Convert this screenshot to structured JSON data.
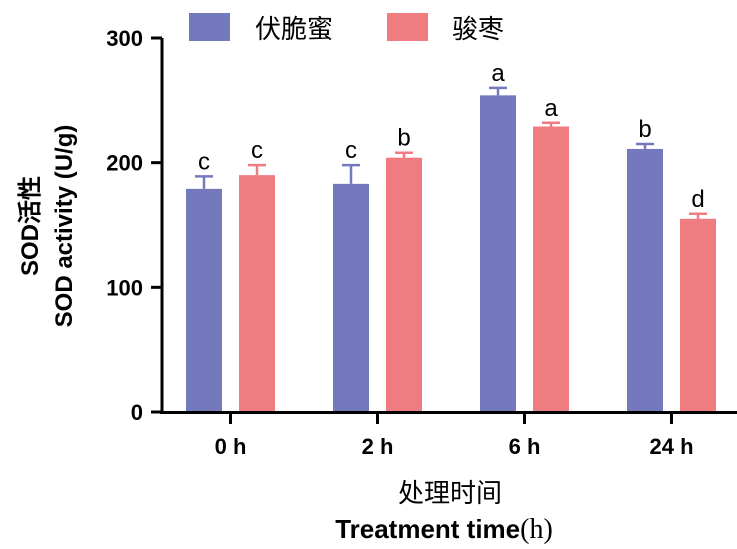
{
  "chart_data": {
    "type": "bar",
    "categories": [
      "0 h",
      "2 h",
      "6 h",
      "24 h"
    ],
    "series": [
      {
        "name": "伏脆蜜",
        "color": "#7479BE",
        "values": [
          179,
          183,
          254,
          211
        ],
        "errors": [
          10,
          15,
          6,
          4
        ],
        "sig": [
          "c",
          "c",
          "a",
          "b"
        ]
      },
      {
        "name": "骏枣",
        "color": "#EE7C80",
        "values": [
          190,
          204,
          229,
          155
        ],
        "errors": [
          8,
          4,
          3,
          4
        ],
        "sig": [
          "c",
          "b",
          "a",
          "d"
        ]
      }
    ],
    "ylim": [
      0,
      300
    ],
    "yticks": [
      "0",
      "100",
      "200",
      "300"
    ],
    "ylabel_line1": "SOD活性",
    "ylabel_line2": "SOD activity (U/g)",
    "xlabel_cn": "处理时间",
    "xlabel_en": "Treatment time",
    "xlabel_unit": "(h)",
    "legend_position": "top"
  }
}
